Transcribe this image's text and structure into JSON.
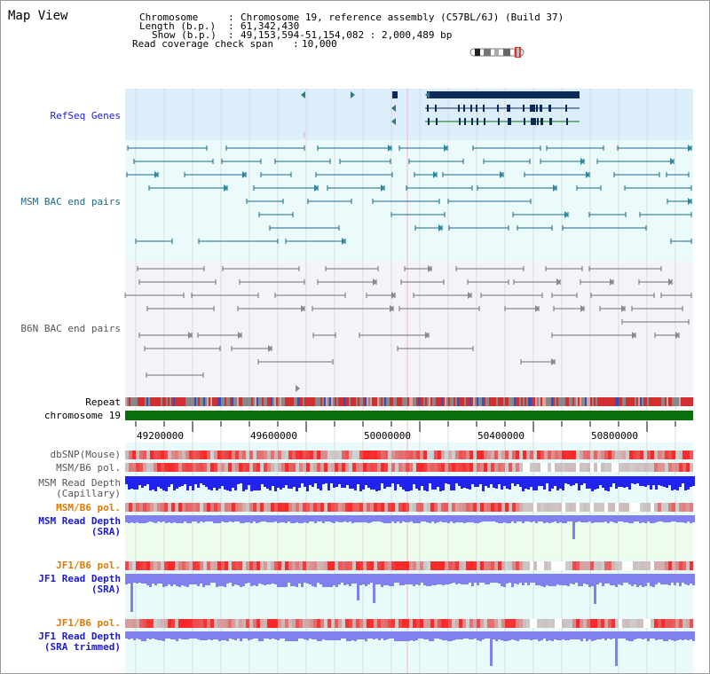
{
  "title": "Map View",
  "info": {
    "chromosome_key": "Chromosome",
    "chromosome_val": "Chromosome 19, reference assembly (C57BL/6J) (Build 37)",
    "length_key": "Length (b.p.)",
    "length_val": "61,342,430",
    "show_key": "Show (b.p.)",
    "show_val": "49,153,594-51,154,082 : 2,000,489 bp",
    "coverage_key": "Read coverage check span",
    "coverage_val": "10,000"
  },
  "tracks": {
    "refseq": "RefSeq Genes",
    "msm_bac": "MSM BAC end pairs",
    "b6n_bac": "B6N BAC end pairs",
    "repeat": "Repeat",
    "chromosome": "chromosome 19",
    "dbsnp": "dbSNP(Mouse)",
    "msm_pol": "MSM/B6 pol.",
    "msm_depth_cap_1": "MSM Read Depth",
    "msm_depth_cap_2": "(Capillary)",
    "msm_pol_sra": "MSM/B6 pol.",
    "msm_depth_sra_1": "MSM Read Depth",
    "msm_depth_sra_2": "(SRA)",
    "jf1_pol_1": "JF1/B6 pol.",
    "jf1_depth_1": "JF1 Read Depth",
    "jf1_depth_2": "(SRA)",
    "jf1_pol_2": "JF1/B6 pol.",
    "jf1_trim_1": "JF1 Read Depth",
    "jf1_trim_2": "(SRA trimmed)"
  },
  "axis": {
    "ticks": [
      "49200000",
      "49600000",
      "50000000",
      "50400000",
      "50800000"
    ]
  },
  "colors": {
    "refseq_bg": "#ddeefb",
    "bac_bg": "#ebfbfb",
    "b6n_bg": "#f2f2f8",
    "lower_bg": "#e8fafa",
    "chromosome_bar": "#0a6e0a",
    "gene": "#0c2a5a",
    "bac_msm": "#1a6a88",
    "bac_b6n": "#707070",
    "depth_blue": "#2222ee",
    "depth_light": "#8080ee",
    "snp_red": "#e83030"
  }
}
